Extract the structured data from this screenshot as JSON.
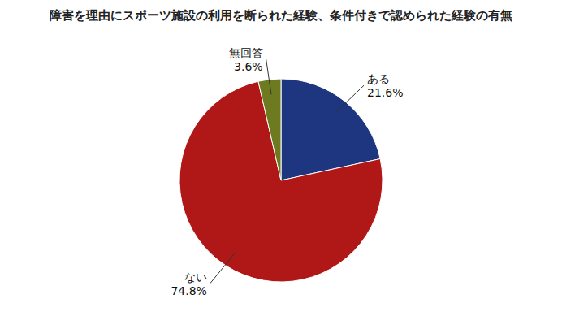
{
  "chart_data": {
    "type": "pie",
    "title": "障害を理由にスポーツ施設の利用を断られた経験、条件付きで認められた経験の有無",
    "categories": [
      "ある",
      "ない",
      "無回答"
    ],
    "values": [
      21.6,
      74.8,
      3.6
    ],
    "value_labels": [
      "21.6%",
      "74.8%",
      "3.6%"
    ],
    "colors": [
      "#1e3580",
      "#b01818",
      "#6e7a20"
    ],
    "data_labels": true
  }
}
